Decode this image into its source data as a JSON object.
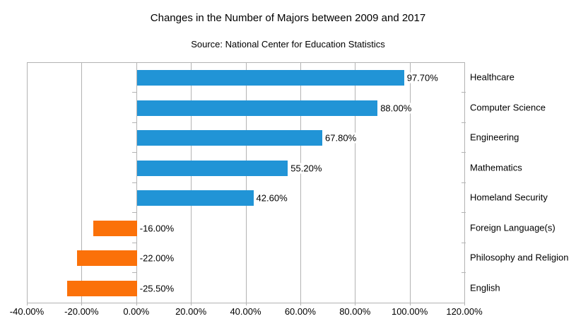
{
  "colors": {
    "positive_bar": "#2194d6",
    "negative_bar": "#fb7109",
    "grid": "#b3b3b3",
    "text": "#000000",
    "background": "#ffffff"
  },
  "chart_data": {
    "type": "bar",
    "orientation": "horizontal",
    "title": "Changes in the Number of Majors between 2009 and 2017",
    "subtitle": "Source: National Center for Education Statistics",
    "categories": [
      "Healthcare",
      "Computer Science",
      "Engineering",
      "Mathematics",
      "Homeland Security",
      "Foreign Language(s)",
      "Philosophy and Religion",
      "English"
    ],
    "values": [
      97.7,
      88.0,
      67.8,
      55.2,
      42.6,
      -16.0,
      -22.0,
      -25.5
    ],
    "data_labels": [
      "97.70%",
      "88.00%",
      "67.80%",
      "55.20%",
      "42.60%",
      "-16.00%",
      "-22.00%",
      "-25.50%"
    ],
    "x_ticks": [
      "-40.00%",
      "-20.00%",
      "0.00%",
      "20.00%",
      "40.00%",
      "60.00%",
      "80.00%",
      "100.00%",
      "120.00%"
    ],
    "xlim": [
      -40,
      120
    ],
    "grid": true,
    "legend": "none",
    "xlabel": "",
    "ylabel": "",
    "category_axis_side": "right",
    "data_label_position": "outside-end-positive-side"
  }
}
